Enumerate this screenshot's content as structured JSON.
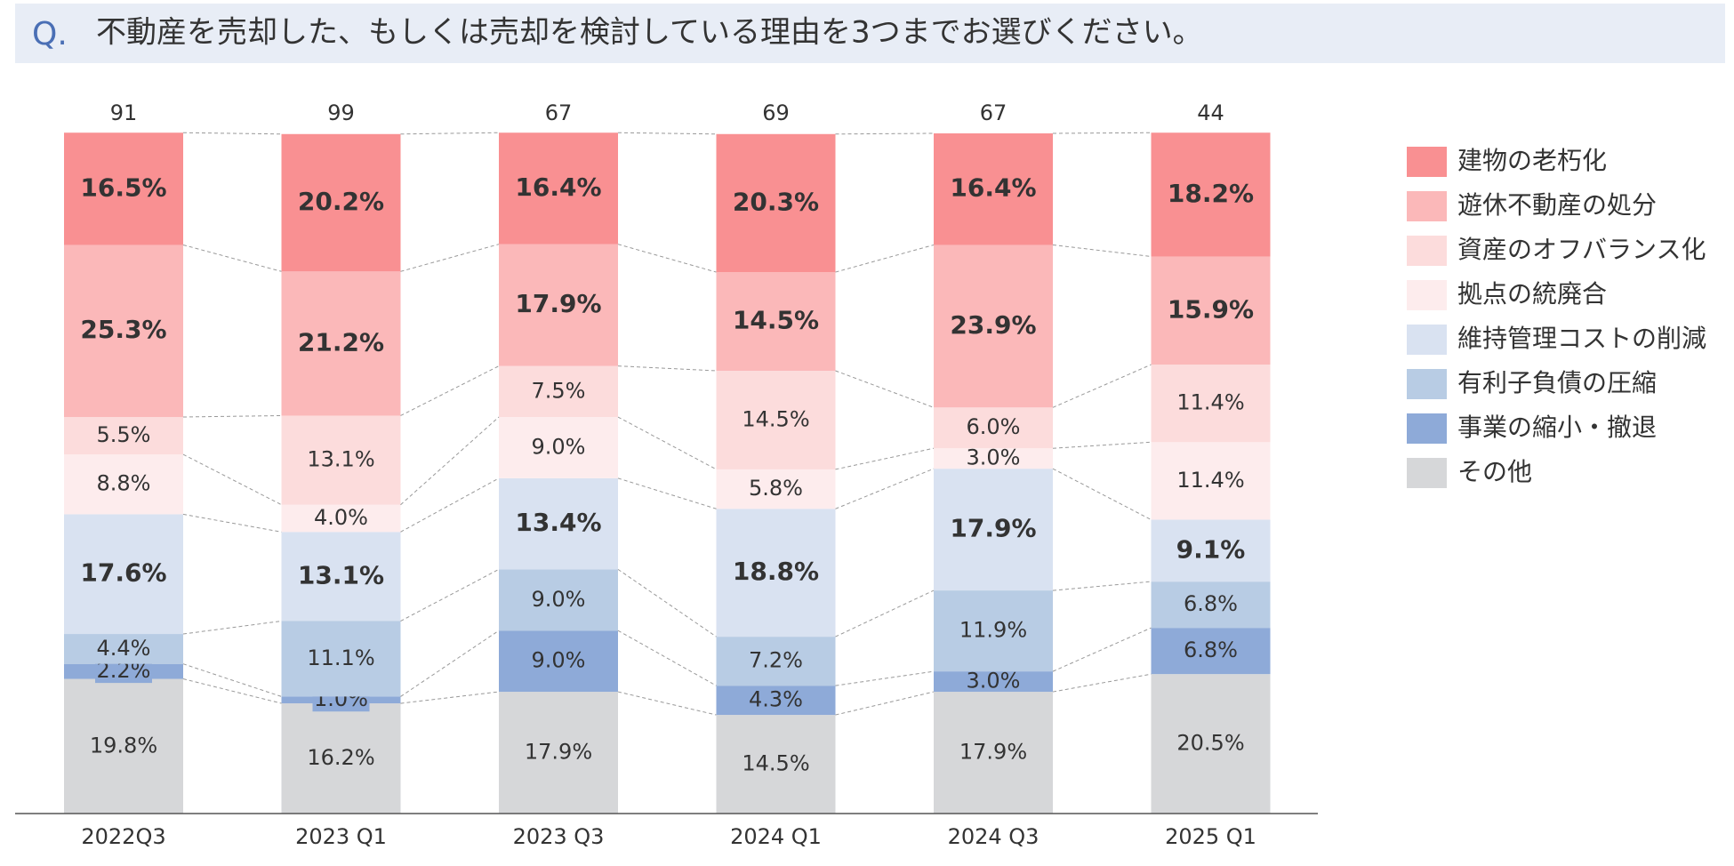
{
  "chart_data": {
    "type": "stacked_bar",
    "question_label": "Q.",
    "title": "不動産を売却した、もしくは売却を検討している理由を3つまでお選びください。",
    "categories": [
      "2022Q3",
      "2023 Q1",
      "2023 Q3",
      "2024 Q1",
      "2024 Q3",
      "2025 Q1"
    ],
    "counts": [
      91,
      99,
      67,
      69,
      67,
      44
    ],
    "ylim": [
      0,
      100
    ],
    "legend": "right",
    "series": [
      {
        "name": "建物の老朽化",
        "color": "#f99092",
        "values": [
          16.5,
          20.2,
          16.4,
          20.3,
          16.4,
          18.2
        ],
        "value_labels": [
          "16.5%",
          "20.2%",
          "16.4%",
          "20.3%",
          "16.4%",
          "18.2%"
        ]
      },
      {
        "name": "遊休不動産の処分",
        "color": "#fbb8b9",
        "values": [
          25.3,
          21.2,
          17.9,
          14.5,
          23.9,
          15.9
        ],
        "value_labels": [
          "25.3%",
          "21.2%",
          "17.9%",
          "14.5%",
          "23.9%",
          "15.9%"
        ]
      },
      {
        "name": "資産のオフバランス化",
        "color": "#fcdcdc",
        "values": [
          5.5,
          13.1,
          7.5,
          14.5,
          6.0,
          11.4
        ],
        "value_labels": [
          "5.5%",
          "13.1%",
          "7.5%",
          "14.5%",
          "6.0%",
          "11.4%"
        ]
      },
      {
        "name": "拠点の統廃合",
        "color": "#fdeced",
        "values": [
          8.8,
          4.0,
          9.0,
          5.8,
          3.0,
          11.4
        ],
        "value_labels": [
          "8.8%",
          "4.0%",
          "9.0%",
          "5.8%",
          "3.0%",
          "11.4%"
        ]
      },
      {
        "name": "維持管理コストの削減",
        "color": "#d9e2f1",
        "values": [
          17.6,
          13.1,
          13.4,
          18.8,
          17.9,
          9.1
        ],
        "value_labels": [
          "17.6%",
          "13.1%",
          "13.4%",
          "18.8%",
          "17.9%",
          "9.1%"
        ]
      },
      {
        "name": "有利子負債の圧縮",
        "color": "#b8cce4",
        "values": [
          4.4,
          11.1,
          9.0,
          7.2,
          11.9,
          6.8
        ],
        "value_labels": [
          "4.4%",
          "11.1%",
          "9.0%",
          "7.2%",
          "11.9%",
          "6.8%"
        ]
      },
      {
        "name": "事業の縮小・撤退",
        "color": "#8eaad8",
        "values": [
          2.2,
          1.0,
          9.0,
          4.3,
          3.0,
          6.8
        ],
        "value_labels": [
          "2.2%",
          "1.0%",
          "9.0%",
          "4.3%",
          "3.0%",
          "6.8%"
        ]
      },
      {
        "name": "その他",
        "color": "#d6d7d9",
        "values": [
          19.8,
          16.2,
          17.9,
          14.5,
          17.9,
          20.5
        ],
        "value_labels": [
          "19.8%",
          "16.2%",
          "17.9%",
          "14.5%",
          "17.9%",
          "20.5%"
        ]
      }
    ]
  }
}
